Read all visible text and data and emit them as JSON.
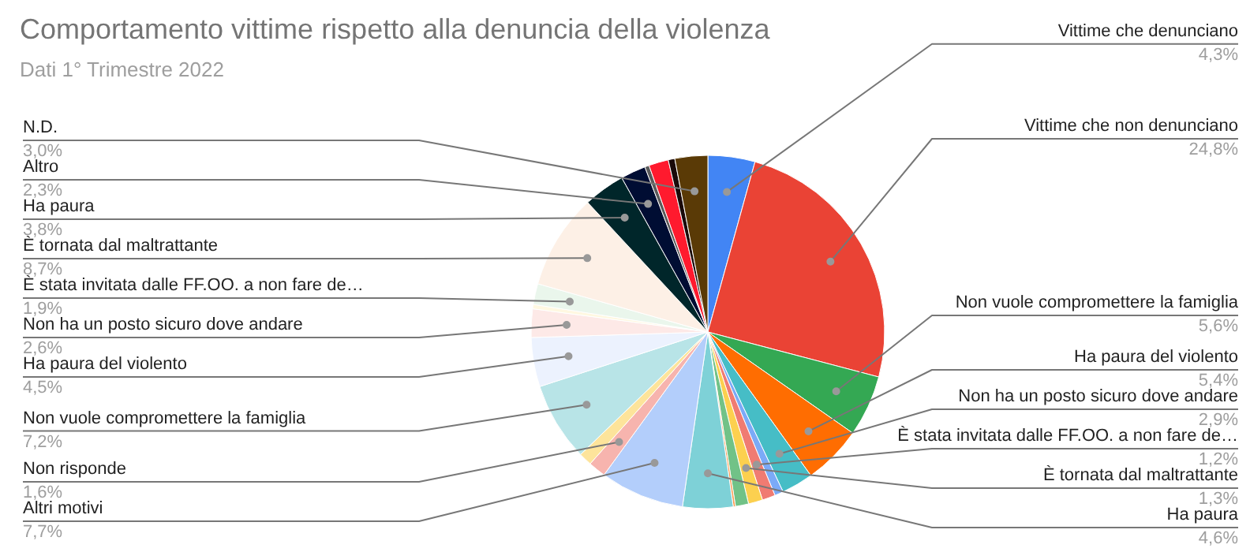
{
  "chart_data": {
    "type": "pie",
    "title": "Comportamento vittime rispetto alla denuncia della violenza",
    "subtitle": "Dati 1° Trimestre 2022",
    "categories": [
      "Vittime che denunciano",
      "Vittime che non denunciano",
      "Non vuole compromettere la famiglia",
      "Ha paura del violento",
      "Non ha un posto sicuro dove andare",
      null,
      "È stata invitata dalle FF.OO. a non fare de…",
      "È tornata dal maltrattante",
      null,
      null,
      "Ha paura",
      "Altri motivi",
      "Non risponde",
      null,
      "Non vuole compromettere la famiglia",
      "Ha paura del violento",
      "Non ha un posto sicuro dove andare",
      null,
      "È stata invitata dalle FF.OO. a non fare de…",
      "È tornata dal maltrattante",
      "Ha paura",
      "Altro",
      null,
      null,
      null,
      "N.D."
    ],
    "values": [
      4.3,
      24.8,
      5.6,
      5.4,
      2.9,
      0.8,
      1.2,
      1.3,
      1.2,
      0.2,
      4.6,
      7.7,
      1.6,
      1.2,
      7.2,
      4.5,
      2.6,
      0.4,
      1.9,
      8.7,
      3.8,
      2.3,
      0.4,
      1.8,
      0.6,
      3.0
    ],
    "value_labels": [
      "4,3%",
      "24,8%",
      "5,6%",
      "5,4%",
      "2,9%",
      null,
      "1,2%",
      "1,3%",
      null,
      null,
      "4,6%",
      "7,7%",
      "1,6%",
      null,
      "7,2%",
      "4,5%",
      "2,6%",
      null,
      "1,9%",
      "8,7%",
      "3,8%",
      "2,3%",
      null,
      null,
      null,
      "3,0%"
    ],
    "colors": [
      "#4285f4",
      "#ea4335",
      "#34a853",
      "#ff6d01",
      "#46bdc6",
      "#7baaf7",
      "#f07b72",
      "#fcd04f",
      "#71c287",
      "#ff994d",
      "#7ed1d7",
      "#b3cefb",
      "#f7b4ae",
      "#fde49b",
      "#b8e4e7",
      "#ecf2fe",
      "#fde9e7",
      "#fff8e1",
      "#eaf6ec",
      "#fdf0e6",
      "#00262a",
      "#000d33",
      "#5a5a5a",
      "#ff1a2e",
      "#1a0a0a",
      "#5a3a06"
    ]
  }
}
